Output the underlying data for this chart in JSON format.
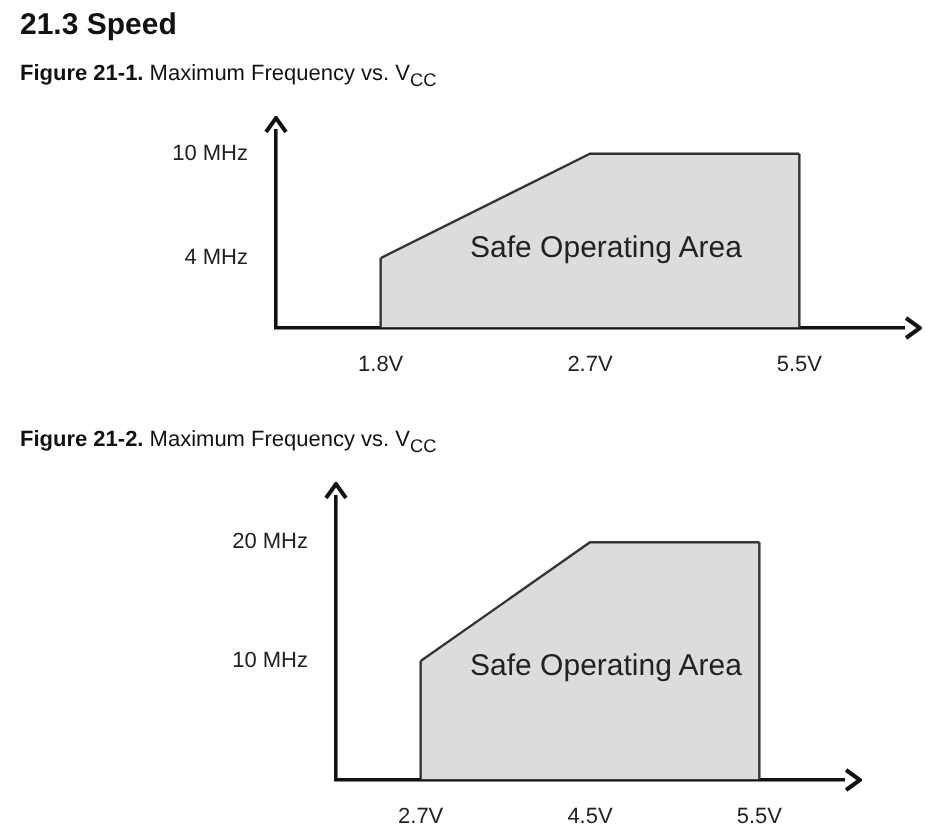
{
  "chart_data": [
    {
      "type": "area",
      "title": "21.3 Speed",
      "subtitle": "Figure 21-1.  Maximum Frequency vs. V$_{CC}$",
      "categories": [
        "1.8V",
        "2.7V",
        "5.5V"
      ],
      "marker": "none",
      "grid": false,
      "legend": false,
      "series": [
        {
          "color": "#dcdcdc",
          "values": [
            4,
            10,
            10
          ]
        }
      ],
      "ylim": [
        0,
        11.3
      ],
      "yticks": [
        {
          "value": 4,
          "label": "4 MHz"
        },
        {
          "value": 10,
          "label": "10 MHz"
        }
      ],
      "annotations": [
        "Safe Operating Area"
      ]
    },
    {
      "type": "area",
      "title": "Figure 21-2.  Maximum Frequency vs. V$_{CC}$",
      "categories": [
        "2.7V",
        "4.5V",
        "5.5V"
      ],
      "marker": "none",
      "grid": false,
      "legend": false,
      "series": [
        {
          "color": "#dcdcdc",
          "values": [
            10,
            20,
            20
          ]
        }
      ],
      "ylim": [
        0,
        23.8
      ],
      "yticks": [
        {
          "value": 10,
          "label": "10 MHz"
        },
        {
          "value": 20,
          "label": "20 MHz"
        }
      ],
      "annotations": [
        "Safe Operating Area"
      ]
    }
  ]
}
